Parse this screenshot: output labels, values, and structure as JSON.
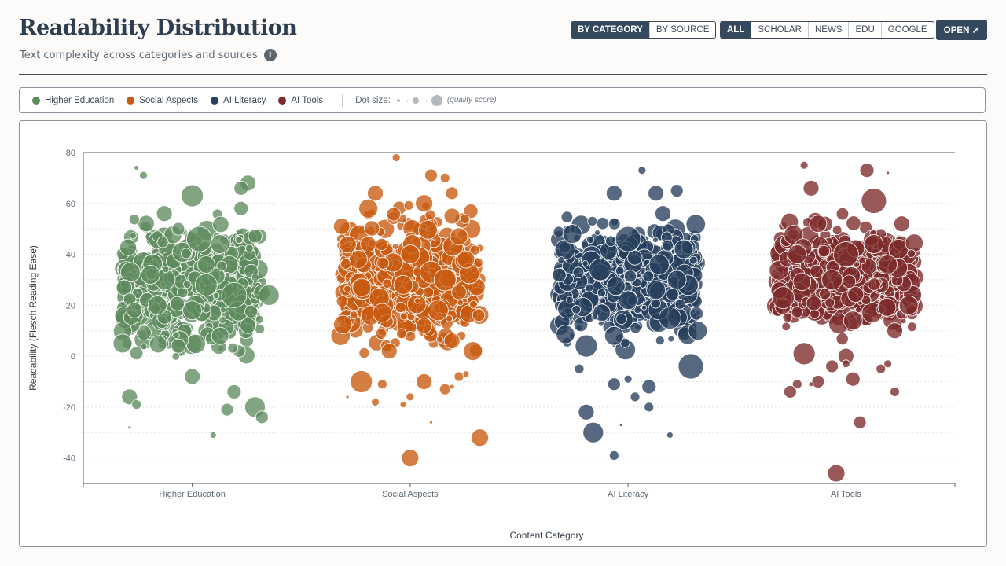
{
  "header": {
    "title": "Readability Distribution",
    "subtitle": "Text complexity across categories and sources",
    "info_icon": "info-icon"
  },
  "view_toggle": {
    "options": [
      "BY CATEGORY",
      "BY SOURCE"
    ],
    "selected": "BY CATEGORY"
  },
  "source_filter": {
    "options": [
      "ALL",
      "SCHOLAR",
      "NEWS",
      "EDU",
      "GOOGLE"
    ],
    "selected": "ALL"
  },
  "open_button": {
    "label": "OPEN ↗",
    "icon": "external-link-icon"
  },
  "legend": {
    "items": [
      {
        "label": "Higher Education",
        "color": "#5e8b5e"
      },
      {
        "label": "Social Aspects",
        "color": "#c85a10"
      },
      {
        "label": "AI Literacy",
        "color": "#263f5c"
      },
      {
        "label": "AI Tools",
        "color": "#7c2a2a"
      }
    ],
    "size_label": "Dot size:",
    "size_note": "(quality score)"
  },
  "chart_data": {
    "type": "scatter",
    "subtype": "jittered beeswarm",
    "xlabel": "Content Category",
    "ylabel": "Readability (Flesch Reading Ease)",
    "ylim": [
      -50,
      80
    ],
    "y_ticks": [
      -40,
      -20,
      0,
      20,
      40,
      60,
      80
    ],
    "categories": [
      "Higher Education",
      "Social Aspects",
      "AI Literacy",
      "AI Tools"
    ],
    "grid": "horizontal dotted",
    "series": [
      {
        "name": "Higher Education",
        "color": "#5e8b5e",
        "points": [
          [
            0.0,
            63,
            14
          ],
          [
            0.4,
            68,
            10
          ],
          [
            0.35,
            66,
            9
          ],
          [
            -0.4,
            74,
            3
          ],
          [
            -0.35,
            71,
            5
          ],
          [
            0.05,
            46,
            16
          ],
          [
            0.1,
            28,
            14
          ],
          [
            0.3,
            24,
            16
          ],
          [
            -0.25,
            20,
            12
          ],
          [
            0.2,
            8,
            11
          ],
          [
            -0.1,
            4,
            9
          ],
          [
            0.45,
            -20,
            13
          ],
          [
            -0.45,
            -16,
            10
          ],
          [
            0.3,
            -14,
            9
          ],
          [
            0.5,
            -24,
            8
          ],
          [
            -0.4,
            -19,
            6
          ],
          [
            -0.45,
            -28,
            2
          ],
          [
            0.15,
            -31,
            4
          ],
          [
            0.25,
            -21,
            8
          ],
          [
            0.55,
            24,
            13
          ],
          [
            -0.5,
            5,
            12
          ],
          [
            0.0,
            -8,
            10
          ],
          [
            0.2,
            44,
            12
          ],
          [
            -0.2,
            56,
            10
          ],
          [
            0.35,
            58,
            9
          ],
          [
            0.1,
            36,
            11
          ],
          [
            -0.3,
            32,
            12
          ],
          [
            0.4,
            12,
            10
          ],
          [
            0.0,
            18,
            12
          ],
          [
            -0.1,
            50,
            8
          ]
        ]
      },
      {
        "name": "Social Aspects",
        "color": "#c85a10",
        "points": [
          [
            0.1,
            60,
            11
          ],
          [
            0.3,
            55,
            10
          ],
          [
            -0.25,
            64,
            10
          ],
          [
            -0.1,
            78,
            5
          ],
          [
            0.15,
            71,
            8
          ],
          [
            0.25,
            70,
            6
          ],
          [
            0.3,
            64,
            8
          ],
          [
            -0.3,
            58,
            12
          ],
          [
            0.15,
            33,
            14
          ],
          [
            -0.2,
            17,
            12
          ],
          [
            0.25,
            30,
            14
          ],
          [
            0.35,
            47,
            11
          ],
          [
            -0.15,
            2,
            10
          ],
          [
            0.1,
            -10,
            10
          ],
          [
            0.45,
            2,
            12
          ],
          [
            -0.35,
            -10,
            14
          ],
          [
            -0.2,
            -11,
            6
          ],
          [
            0.0,
            -16,
            5
          ],
          [
            -0.25,
            -18,
            5
          ],
          [
            -0.05,
            -19,
            4
          ],
          [
            0.15,
            -26,
            2
          ],
          [
            0.25,
            -13,
            7
          ],
          [
            0.35,
            -8,
            6
          ],
          [
            0.5,
            -32,
            11
          ],
          [
            0.0,
            -40,
            11
          ],
          [
            0.4,
            -7,
            4
          ],
          [
            0.3,
            6,
            10
          ],
          [
            -0.45,
            -16,
            2
          ],
          [
            0.3,
            -12,
            3
          ],
          [
            0.0,
            40,
            12
          ],
          [
            0.2,
            18,
            13
          ],
          [
            -0.05,
            28,
            12
          ],
          [
            0.4,
            38,
            11
          ],
          [
            -0.3,
            44,
            10
          ],
          [
            0.1,
            12,
            10
          ]
        ]
      },
      {
        "name": "AI Literacy",
        "color": "#263f5c",
        "points": [
          [
            0.1,
            73,
            5
          ],
          [
            -0.1,
            64,
            10
          ],
          [
            0.2,
            64,
            10
          ],
          [
            0.35,
            65,
            8
          ],
          [
            0.0,
            46,
            16
          ],
          [
            -0.3,
            4,
            14
          ],
          [
            0.3,
            15,
            14
          ],
          [
            0.5,
            10,
            12
          ],
          [
            0.45,
            -4,
            16
          ],
          [
            -0.35,
            -5,
            6
          ],
          [
            -0.1,
            -11,
            8
          ],
          [
            0.15,
            -12,
            9
          ],
          [
            0.05,
            -16,
            6
          ],
          [
            0.0,
            -9,
            5
          ],
          [
            -0.3,
            -22,
            10
          ],
          [
            -0.25,
            -30,
            13
          ],
          [
            -0.1,
            -39,
            6
          ],
          [
            0.15,
            -20,
            6
          ],
          [
            0.3,
            -31,
            4
          ],
          [
            -0.05,
            -27,
            2
          ],
          [
            0.2,
            26,
            12
          ],
          [
            -0.2,
            34,
            14
          ],
          [
            0.4,
            42,
            12
          ],
          [
            0.0,
            22,
            12
          ],
          [
            -0.4,
            48,
            12
          ],
          [
            0.25,
            56,
            10
          ],
          [
            -0.1,
            8,
            12
          ],
          [
            0.35,
            30,
            12
          ]
        ]
      },
      {
        "name": "AI Tools",
        "color": "#7c2a2a",
        "points": [
          [
            -0.3,
            75,
            5
          ],
          [
            0.15,
            73,
            9
          ],
          [
            0.3,
            72,
            2
          ],
          [
            -0.25,
            66,
            10
          ],
          [
            0.2,
            61,
            16
          ],
          [
            -0.2,
            52,
            11
          ],
          [
            0.0,
            40,
            16
          ],
          [
            0.45,
            20,
            12
          ],
          [
            0.35,
            10,
            10
          ],
          [
            -0.3,
            1,
            14
          ],
          [
            0.0,
            0,
            10
          ],
          [
            -0.2,
            -10,
            8
          ],
          [
            -0.35,
            -11,
            6
          ],
          [
            0.05,
            -9,
            9
          ],
          [
            -0.4,
            -14,
            8
          ],
          [
            -0.25,
            -11,
            3
          ],
          [
            -0.1,
            -4,
            8
          ],
          [
            0.0,
            -3,
            5
          ],
          [
            0.25,
            -5,
            6
          ],
          [
            0.3,
            -3,
            5
          ],
          [
            0.35,
            -14,
            6
          ],
          [
            0.1,
            -26,
            8
          ],
          [
            -0.07,
            -46,
            11
          ],
          [
            -0.45,
            23,
            14
          ],
          [
            0.2,
            44,
            12
          ],
          [
            -0.1,
            30,
            13
          ],
          [
            0.3,
            36,
            12
          ],
          [
            0.05,
            14,
            12
          ],
          [
            -0.35,
            40,
            12
          ],
          [
            0.4,
            52,
            10
          ]
        ]
      }
    ],
    "point_encoding": "[x_offset_within_category (-0.5..0.5), readability, quality_score]"
  }
}
